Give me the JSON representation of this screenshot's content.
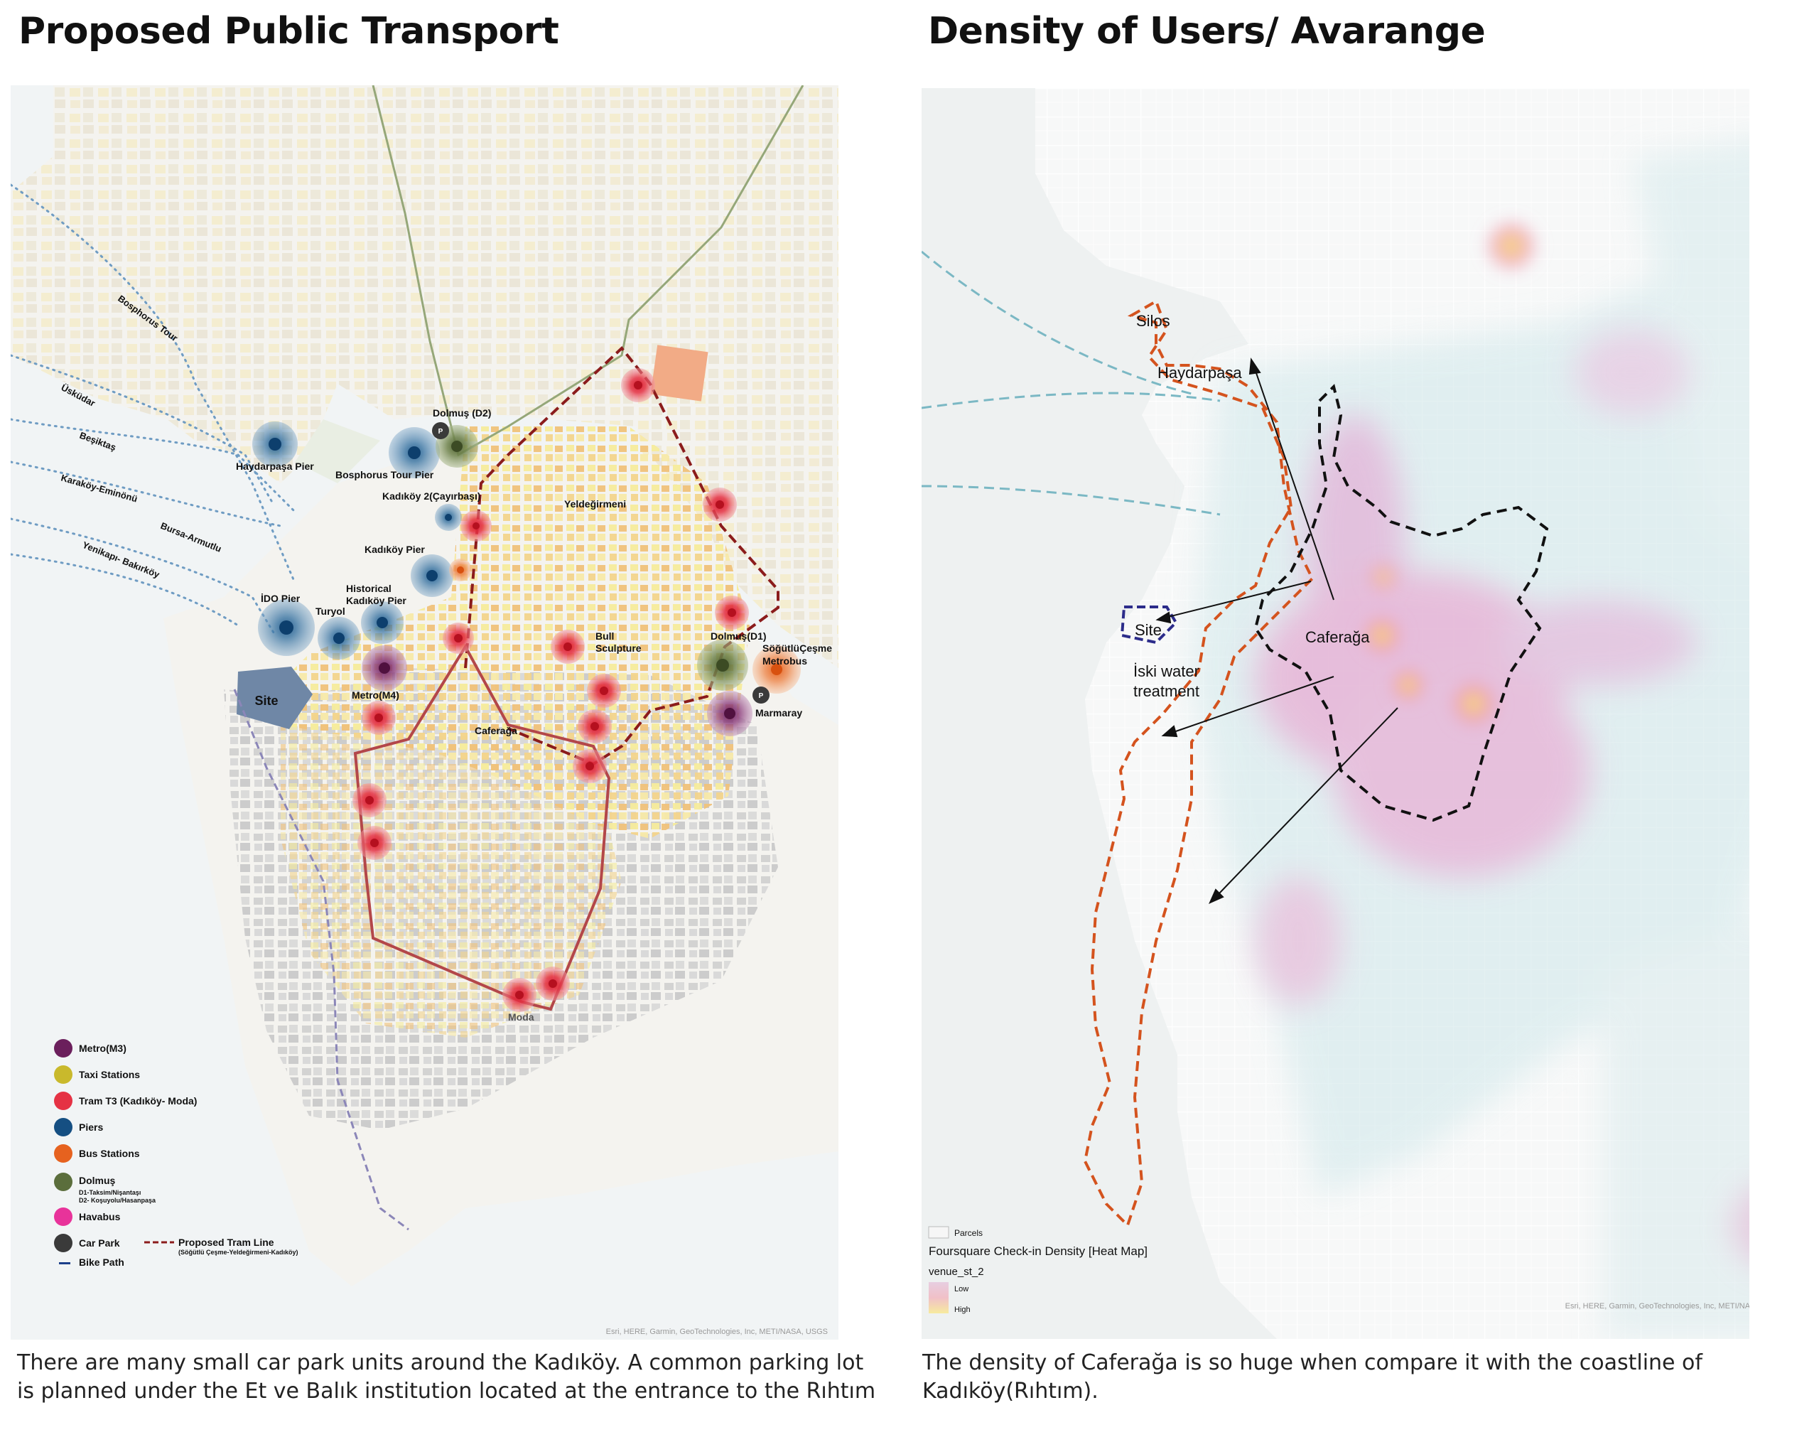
{
  "left": {
    "title": "Proposed Public Transport",
    "caption": "There are many small car park units around the Kadıköy. A common parking lot is planned under the Et ve Balık institution located at the entrance to the Rıhtım",
    "map_labels": {
      "dolmus_d2": "Dolmuş (D2)",
      "haydarpasa_pier": "Haydarpaşa Pier",
      "bosphorus_tour_pier": "Bosphorus Tour Pier",
      "kadikoy2": "Kadıköy 2(Çayırbaşı)",
      "yeldegirmeni": "Yeldeğirmeni",
      "kadikoy_pier": "Kadıköy Pier",
      "historical_1": "Historical",
      "historical_2": "Kadıköy Pier",
      "ido_pier": "İDO Pier",
      "turyol": "Turyol",
      "bull_1": "Bull",
      "bull_2": "Sculpture",
      "dolmus_d1": "Dolmuş(D1)",
      "sogutlu_1": "SöğütlüÇeşme",
      "sogutlu_2": "Metrobus",
      "metro_m4": "Metro(M4)",
      "marmaray": "Marmaray",
      "site": "Site",
      "caferaga": "Caferağa",
      "moda": "Moda",
      "parking": "P"
    },
    "ferry_routes": [
      "Bosphorus Tour",
      "Üsküdar",
      "Beşiktaş",
      "Karaköy-Eminönü",
      "Bursa-Armutlu",
      "Yenikapı- Bakırköy"
    ],
    "legend": {
      "metro": "Metro(M3)",
      "taxi": "Taxi Stations",
      "tram": "Tram T3 (Kadıköy- Moda)",
      "piers": "Piers",
      "bus": "Bus Stations",
      "dolmus": "Dolmuş",
      "dolmus_d1": "D1-Taksim/Nişantaşı",
      "dolmus_d2": "D2- Koşuyolu/Hasanpaşa",
      "havabus": "Havabus",
      "carpark": "Car Park",
      "bikepath": "Bike Path",
      "tramline": "Proposed Tram Line",
      "tramline_sub": "(Söğütlü Çeşme-Yeldeğirmeni-Kadıköy)"
    },
    "legend_colors": {
      "metro": "#6b1f5c",
      "taxi": "#c9b92c",
      "tram": "#e53244",
      "piers": "#154f82",
      "bus": "#e6621f",
      "dolmus": "#5b6e3c",
      "havabus": "#e8339a",
      "carpark": "#3a3a3a",
      "bikepath": "#1c3f8a",
      "tramline": "#8b1c1c"
    },
    "attribution": "Esri, HERE, Garmin, GeoTechnologies, Inc, METI/NASA, USGS"
  },
  "right": {
    "title": "Density of Users/ Avarange",
    "caption": "The density of Caferağa is so huge when compare it with the coastline of Kadıköy(Rıhtım).",
    "map_labels": {
      "silos": "Silos",
      "haydarpasa": "Haydarpaşa",
      "site": "Site",
      "caferaga": "Caferağa",
      "iski_1": "İski water",
      "iski_2": "treatment"
    },
    "legend": {
      "parcels": "Parcels",
      "heatmap_title": "Foursquare Check-in Density [Heat Map]",
      "field": "venue_st_2",
      "low": "Low",
      "high": "High"
    },
    "attribution": "Esri, HERE, Garmin, GeoTechnologies, Inc, METI/NASA, USGS"
  }
}
